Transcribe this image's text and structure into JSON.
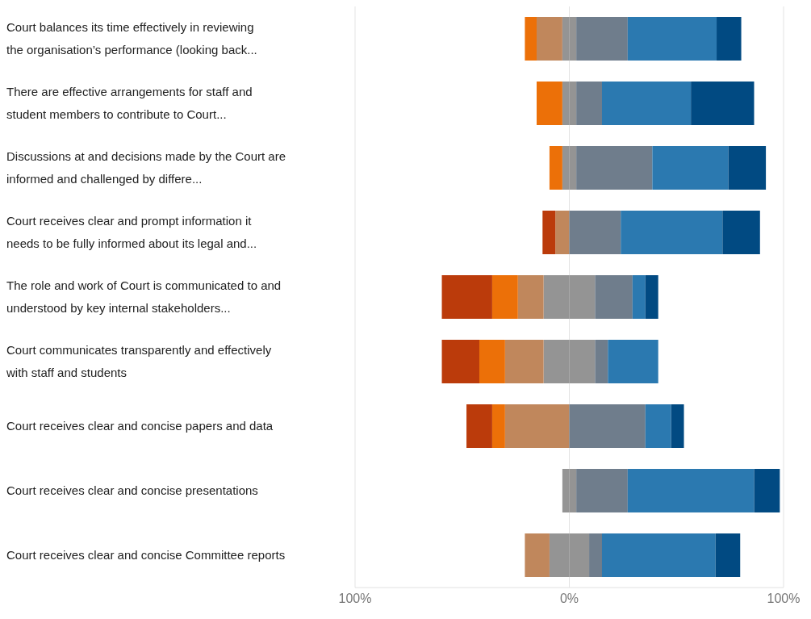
{
  "chart_data": {
    "type": "bar",
    "orientation": "horizontal",
    "stacked": true,
    "categories": [
      "Court balances its time effectively in reviewing the organisation’s performance (looking back...",
      "There are effective arrangements for staff and student members to contribute to Court...",
      "Discussions at and decisions made by the Court are informed and challenged by differe...",
      "Court receives clear and prompt information it needs to be fully informed about its legal and...",
      "The role and work of Court is communicated to and understood by key internal stakeholders...",
      "Court communicates transparently and effectively with staff and students",
      "Court receives clear and concise papers and data",
      "Court receives clear and concise presentations",
      "Court receives clear and concise Committee reports"
    ],
    "series": [
      {
        "color": "#949494",
        "values": [
          -3.25,
          -3.25,
          -3.25,
          null,
          -12,
          -12,
          null,
          -3.25,
          -9.25
        ]
      },
      {
        "color": "#c0875c",
        "values": [
          -12,
          null,
          null,
          -6.5,
          -12,
          -18,
          -30,
          null,
          -11.5
        ]
      },
      {
        "color": "#ec7008",
        "values": [
          -5.5,
          -12,
          -6,
          null,
          -12,
          -12,
          -6,
          null,
          null
        ]
      },
      {
        "color": "#bb3b0b",
        "values": [
          null,
          null,
          null,
          -6,
          -23.5,
          -17.5,
          -12,
          null,
          null
        ]
      },
      {
        "color": "#949494",
        "values": [
          3.25,
          3.25,
          3.25,
          null,
          12,
          12,
          null,
          3.25,
          9.25
        ]
      },
      {
        "color": "#6f7d8c",
        "values": [
          24,
          12,
          35.5,
          24,
          17.5,
          6,
          35.5,
          24,
          6
        ]
      },
      {
        "color": "#2b79b0",
        "values": [
          41.5,
          41.5,
          35.5,
          47.5,
          6,
          23.5,
          12,
          59,
          53
        ]
      },
      {
        "color": "#014a82",
        "values": [
          11.5,
          29.5,
          17.5,
          17.5,
          6,
          null,
          6,
          12,
          11.5
        ]
      }
    ],
    "xlim": [
      -100,
      100
    ],
    "xticks": [
      {
        "value": -100,
        "label": "100%"
      },
      {
        "value": 0,
        "label": "0%"
      },
      {
        "value": 100,
        "label": "100%"
      }
    ],
    "grid": "x"
  }
}
